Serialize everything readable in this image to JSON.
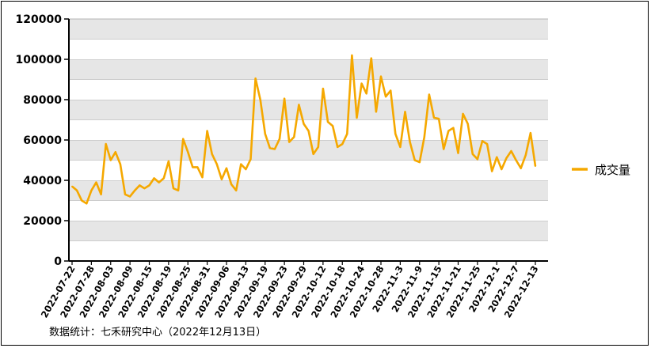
{
  "chart_data": {
    "type": "line",
    "title": "",
    "xlabel": "",
    "ylabel": "",
    "ylim": [
      0,
      120000
    ],
    "yticks": [
      0,
      20000,
      40000,
      60000,
      80000,
      100000,
      120000
    ],
    "grid": "horizontal alternating bands",
    "legend_position": "right",
    "line_color": "#F5A800",
    "x_tick_labels": [
      "2022-07-22",
      "2022-07-28",
      "2022-08-03",
      "2022-08-09",
      "2022-08-15",
      "2022-08-19",
      "2022-08-25",
      "2022-08-31",
      "2022-09-06",
      "2022-09-13",
      "2022-09-19",
      "2022-09-23",
      "2022-09-29",
      "2022-10-12",
      "2022-10-18",
      "2022-10-24",
      "2022-10-28",
      "2022-11-3",
      "2022-11-9",
      "2022-11-15",
      "2022-11-21",
      "2022-11-25",
      "2022-12-1",
      "2022-12-7",
      "2022-12-13"
    ],
    "series": [
      {
        "name": "成交量",
        "values": [
          37000,
          35000,
          30000,
          28500,
          35000,
          39000,
          33000,
          58000,
          50000,
          54000,
          48000,
          33000,
          32000,
          35000,
          37500,
          36000,
          37500,
          41000,
          39000,
          41000,
          49500,
          36000,
          35000,
          60500,
          54000,
          46500,
          46500,
          41500,
          64500,
          53000,
          48000,
          40500,
          46000,
          38000,
          35000,
          48000,
          45500,
          50500,
          90500,
          80000,
          63000,
          56000,
          55500,
          60500,
          80500,
          59000,
          61500,
          77500,
          68000,
          64500,
          53000,
          56500,
          85500,
          69000,
          67000,
          56500,
          58000,
          63000,
          102000,
          71000,
          88000,
          83000,
          100500,
          74000,
          91500,
          81500,
          84500,
          63000,
          56500,
          74000,
          59000,
          50000,
          49000,
          61500,
          82500,
          71000,
          70500,
          55500,
          64500,
          66000,
          53500,
          73000,
          68000,
          53000,
          50500,
          59500,
          58000,
          44500,
          51500,
          45500,
          51000,
          54500,
          50000,
          46000,
          52500,
          63500,
          47000
        ]
      }
    ]
  },
  "source_text": "数据统计：七禾研究中心（2022年12月13日）"
}
